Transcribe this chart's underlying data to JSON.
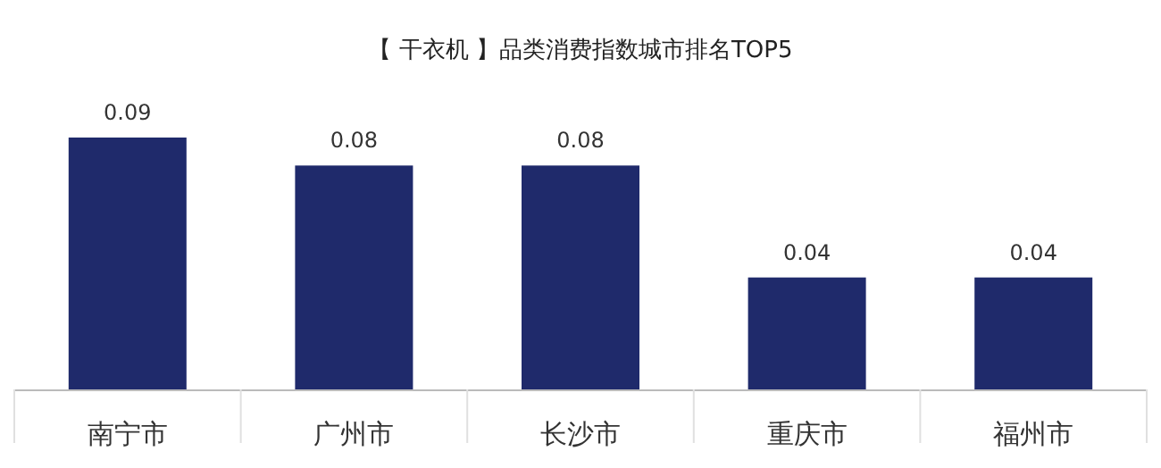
{
  "chart_data": {
    "type": "bar",
    "title": "【 干衣机 】品类消费指数城市排名TOP5",
    "categories": [
      "南宁市",
      "广州市",
      "长沙市",
      "重庆市",
      "福州市"
    ],
    "values": [
      0.09,
      0.08,
      0.08,
      0.04,
      0.04
    ],
    "color": "#1f2a6b",
    "data_labels": true
  }
}
